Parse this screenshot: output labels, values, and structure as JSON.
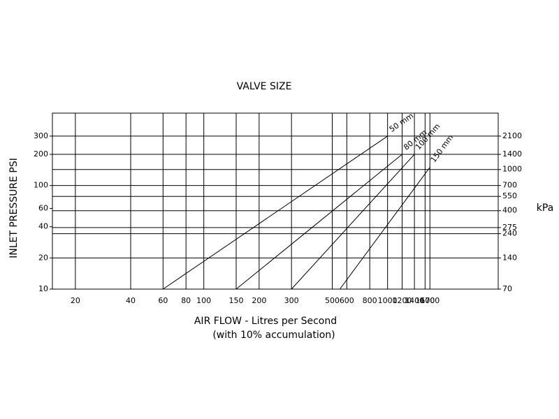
{
  "chart_data": {
    "type": "line",
    "title": "VALVE SIZE",
    "xlabel": [
      "AIR FLOW  - Litres per Second",
      "(with 10% accumulation)"
    ],
    "ylabel": "INLET PRESSURE PSI",
    "y2label": "kPa",
    "xscale": "log",
    "yscale": "log",
    "grid": true,
    "xlim": [
      15,
      4000
    ],
    "ylim": [
      10,
      500
    ],
    "y2lim": [
      70,
      3500
    ],
    "xticks": [
      20,
      40,
      60,
      80,
      100,
      150,
      200,
      300,
      500,
      600,
      800,
      1000,
      1200,
      1400,
      1600,
      1700
    ],
    "yticks": [
      10,
      20,
      40,
      60,
      100,
      200,
      300
    ],
    "y2ticks": [
      70,
      140,
      240,
      275,
      400,
      550,
      700,
      1000,
      1400,
      2100
    ],
    "series": [
      {
        "name": "50 mm",
        "color": "#000000",
        "x": [
          60,
          1000
        ],
        "values": [
          10,
          300
        ]
      },
      {
        "name": "80 mm",
        "color": "#000000",
        "x": [
          150,
          1200
        ],
        "values": [
          10,
          200
        ]
      },
      {
        "name": "100 mm",
        "color": "#000000",
        "x": [
          300,
          1400
        ],
        "values": [
          10,
          200
        ]
      },
      {
        "name": "150 mm",
        "color": "#000000",
        "x": [
          550,
          1700
        ],
        "values": [
          10,
          150
        ]
      }
    ]
  }
}
